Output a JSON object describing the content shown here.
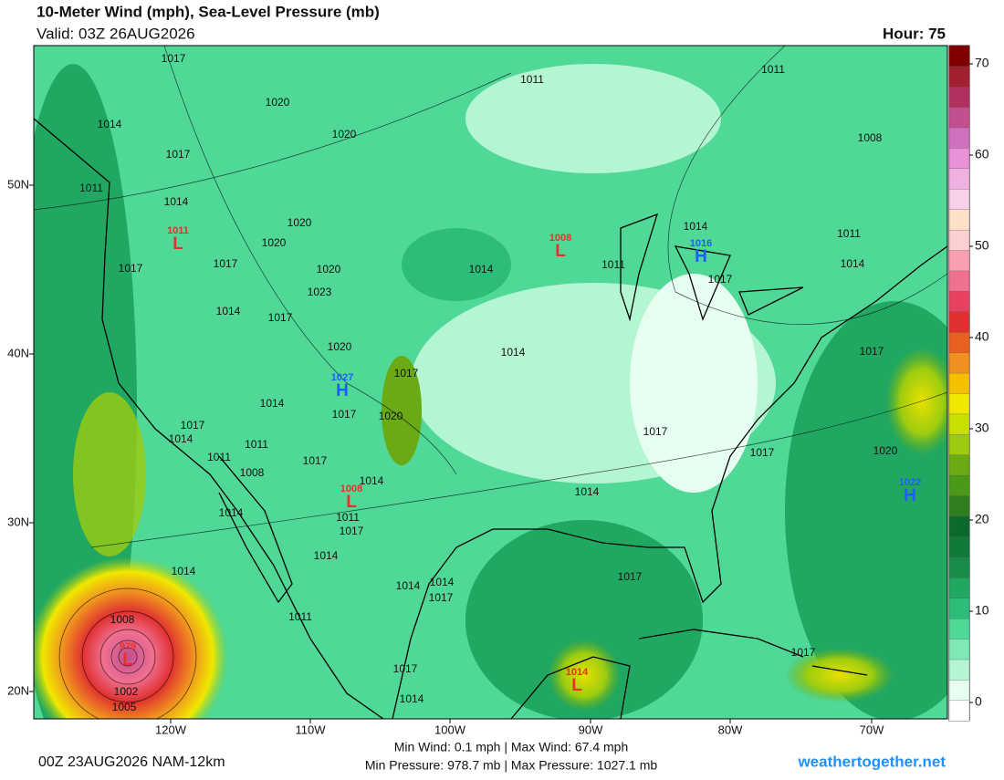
{
  "header": {
    "title": "10-Meter Wind (mph), Sea-Level Pressure (mb)",
    "valid": "Valid: 03Z 26AUG2026",
    "hour": "Hour: 75"
  },
  "map": {
    "lat_labels": [
      "50N",
      "40N",
      "30N",
      "20N"
    ],
    "lon_labels": [
      "120W",
      "110W",
      "100W",
      "90W",
      "80W",
      "70W"
    ],
    "centers": [
      {
        "letter": "L",
        "value": 1011
      },
      {
        "letter": "L",
        "value": 1008
      },
      {
        "letter": "H",
        "value": 1016
      },
      {
        "letter": "H",
        "value": 1027
      },
      {
        "letter": "L",
        "value": 1008
      },
      {
        "letter": "H",
        "value": 1022
      },
      {
        "letter": "L",
        "value": 1014
      },
      {
        "letter": "L",
        "value": 979
      }
    ],
    "isobar_labels": [
      1017,
      1020,
      1020,
      1014,
      1017,
      1011,
      1011,
      1008,
      1011,
      1014,
      1020,
      1020,
      1017,
      1017,
      1020,
      1023,
      1014,
      1017,
      1014,
      1014,
      1011,
      1014,
      1017,
      1011,
      1020,
      1014,
      1017,
      1014,
      1017,
      1020,
      1017,
      1014,
      1011,
      1011,
      1008,
      1017,
      1014,
      1017,
      1017,
      1017,
      1020,
      1014,
      1011,
      1017,
      1014,
      1014,
      1014,
      1017,
      1014,
      1014,
      1017,
      1011,
      1008,
      1002,
      1005,
      1017,
      1014,
      1017
    ]
  },
  "colorbar": {
    "lim": [
      -2,
      72
    ],
    "ticks": [
      0,
      10,
      20,
      30,
      40,
      50,
      60,
      70
    ]
  },
  "footer": {
    "run": "00Z 23AUG2026 NAM-12km",
    "wind": "Min Wind:  0.1 mph | Max Wind: 67.4 mph",
    "pressure": "Min Pressure: 978.7 mb | Max Pressure: 1027.1 mb",
    "site": "weathertogether.net"
  }
}
